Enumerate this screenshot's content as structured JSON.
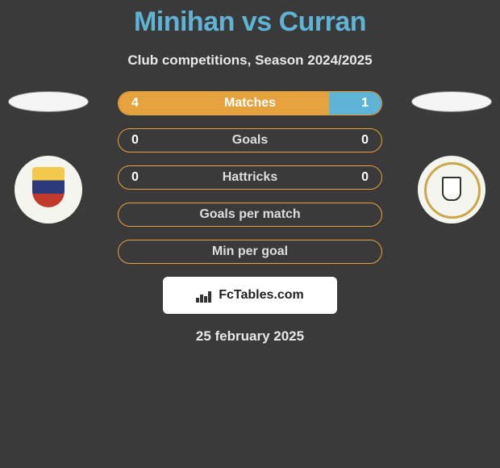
{
  "title": "Minihan vs Curran",
  "subtitle": "Club competitions, Season 2024/2025",
  "site_logo_text": "FcTables.com",
  "date": "25 february 2025",
  "colors": {
    "accent_title": "#5fb3d4",
    "bar_border": "#e6a23c",
    "bar_left_fill": "#e6a23c",
    "bar_right_fill": "#5fb3d4",
    "background": "#3a3a3a"
  },
  "stats": {
    "matches": {
      "label": "Matches",
      "left_value": "4",
      "right_value": "1",
      "left_fill_pct": 80,
      "right_fill_pct": 20
    },
    "goals": {
      "label": "Goals",
      "left_value": "0",
      "right_value": "0",
      "left_fill_pct": 0,
      "right_fill_pct": 0
    },
    "hattricks": {
      "label": "Hattricks",
      "left_value": "0",
      "right_value": "0",
      "left_fill_pct": 0,
      "right_fill_pct": 0
    },
    "goals_per_match": {
      "label": "Goals per match",
      "left_value": "",
      "right_value": "",
      "left_fill_pct": 0,
      "right_fill_pct": 0
    },
    "min_per_goal": {
      "label": "Min per goal",
      "left_value": "",
      "right_value": "",
      "left_fill_pct": 0,
      "right_fill_pct": 0
    }
  }
}
